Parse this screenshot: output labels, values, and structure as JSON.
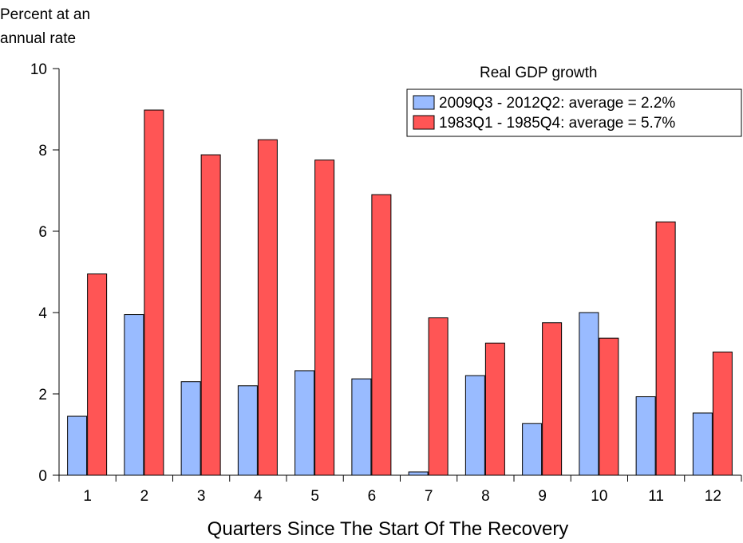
{
  "chart_data": {
    "type": "bar",
    "ylabel_lines": [
      "Percent at an",
      "annual rate"
    ],
    "xlabel": "Quarters Since The Start Of The Recovery",
    "legend_title": "Real GDP growth",
    "legend_placement": "top-right",
    "grid": false,
    "ylim": [
      0,
      10
    ],
    "yticks": [
      0,
      2,
      4,
      6,
      8,
      10
    ],
    "categories": [
      "1",
      "2",
      "3",
      "4",
      "5",
      "6",
      "7",
      "8",
      "9",
      "10",
      "11",
      "12"
    ],
    "series": [
      {
        "name": "2009Q3 - 2012Q2: average = 2.2%",
        "color": "#99bbff",
        "values": [
          1.45,
          3.95,
          2.3,
          2.2,
          2.57,
          2.37,
          0.08,
          2.45,
          1.27,
          4.0,
          1.93,
          1.53
        ]
      },
      {
        "name": "1983Q1 - 1985Q4: average = 5.7%",
        "color": "#ff5555",
        "values": [
          4.95,
          8.98,
          7.88,
          8.25,
          7.75,
          6.9,
          3.87,
          3.25,
          3.75,
          3.37,
          6.23,
          3.03
        ]
      }
    ]
  }
}
